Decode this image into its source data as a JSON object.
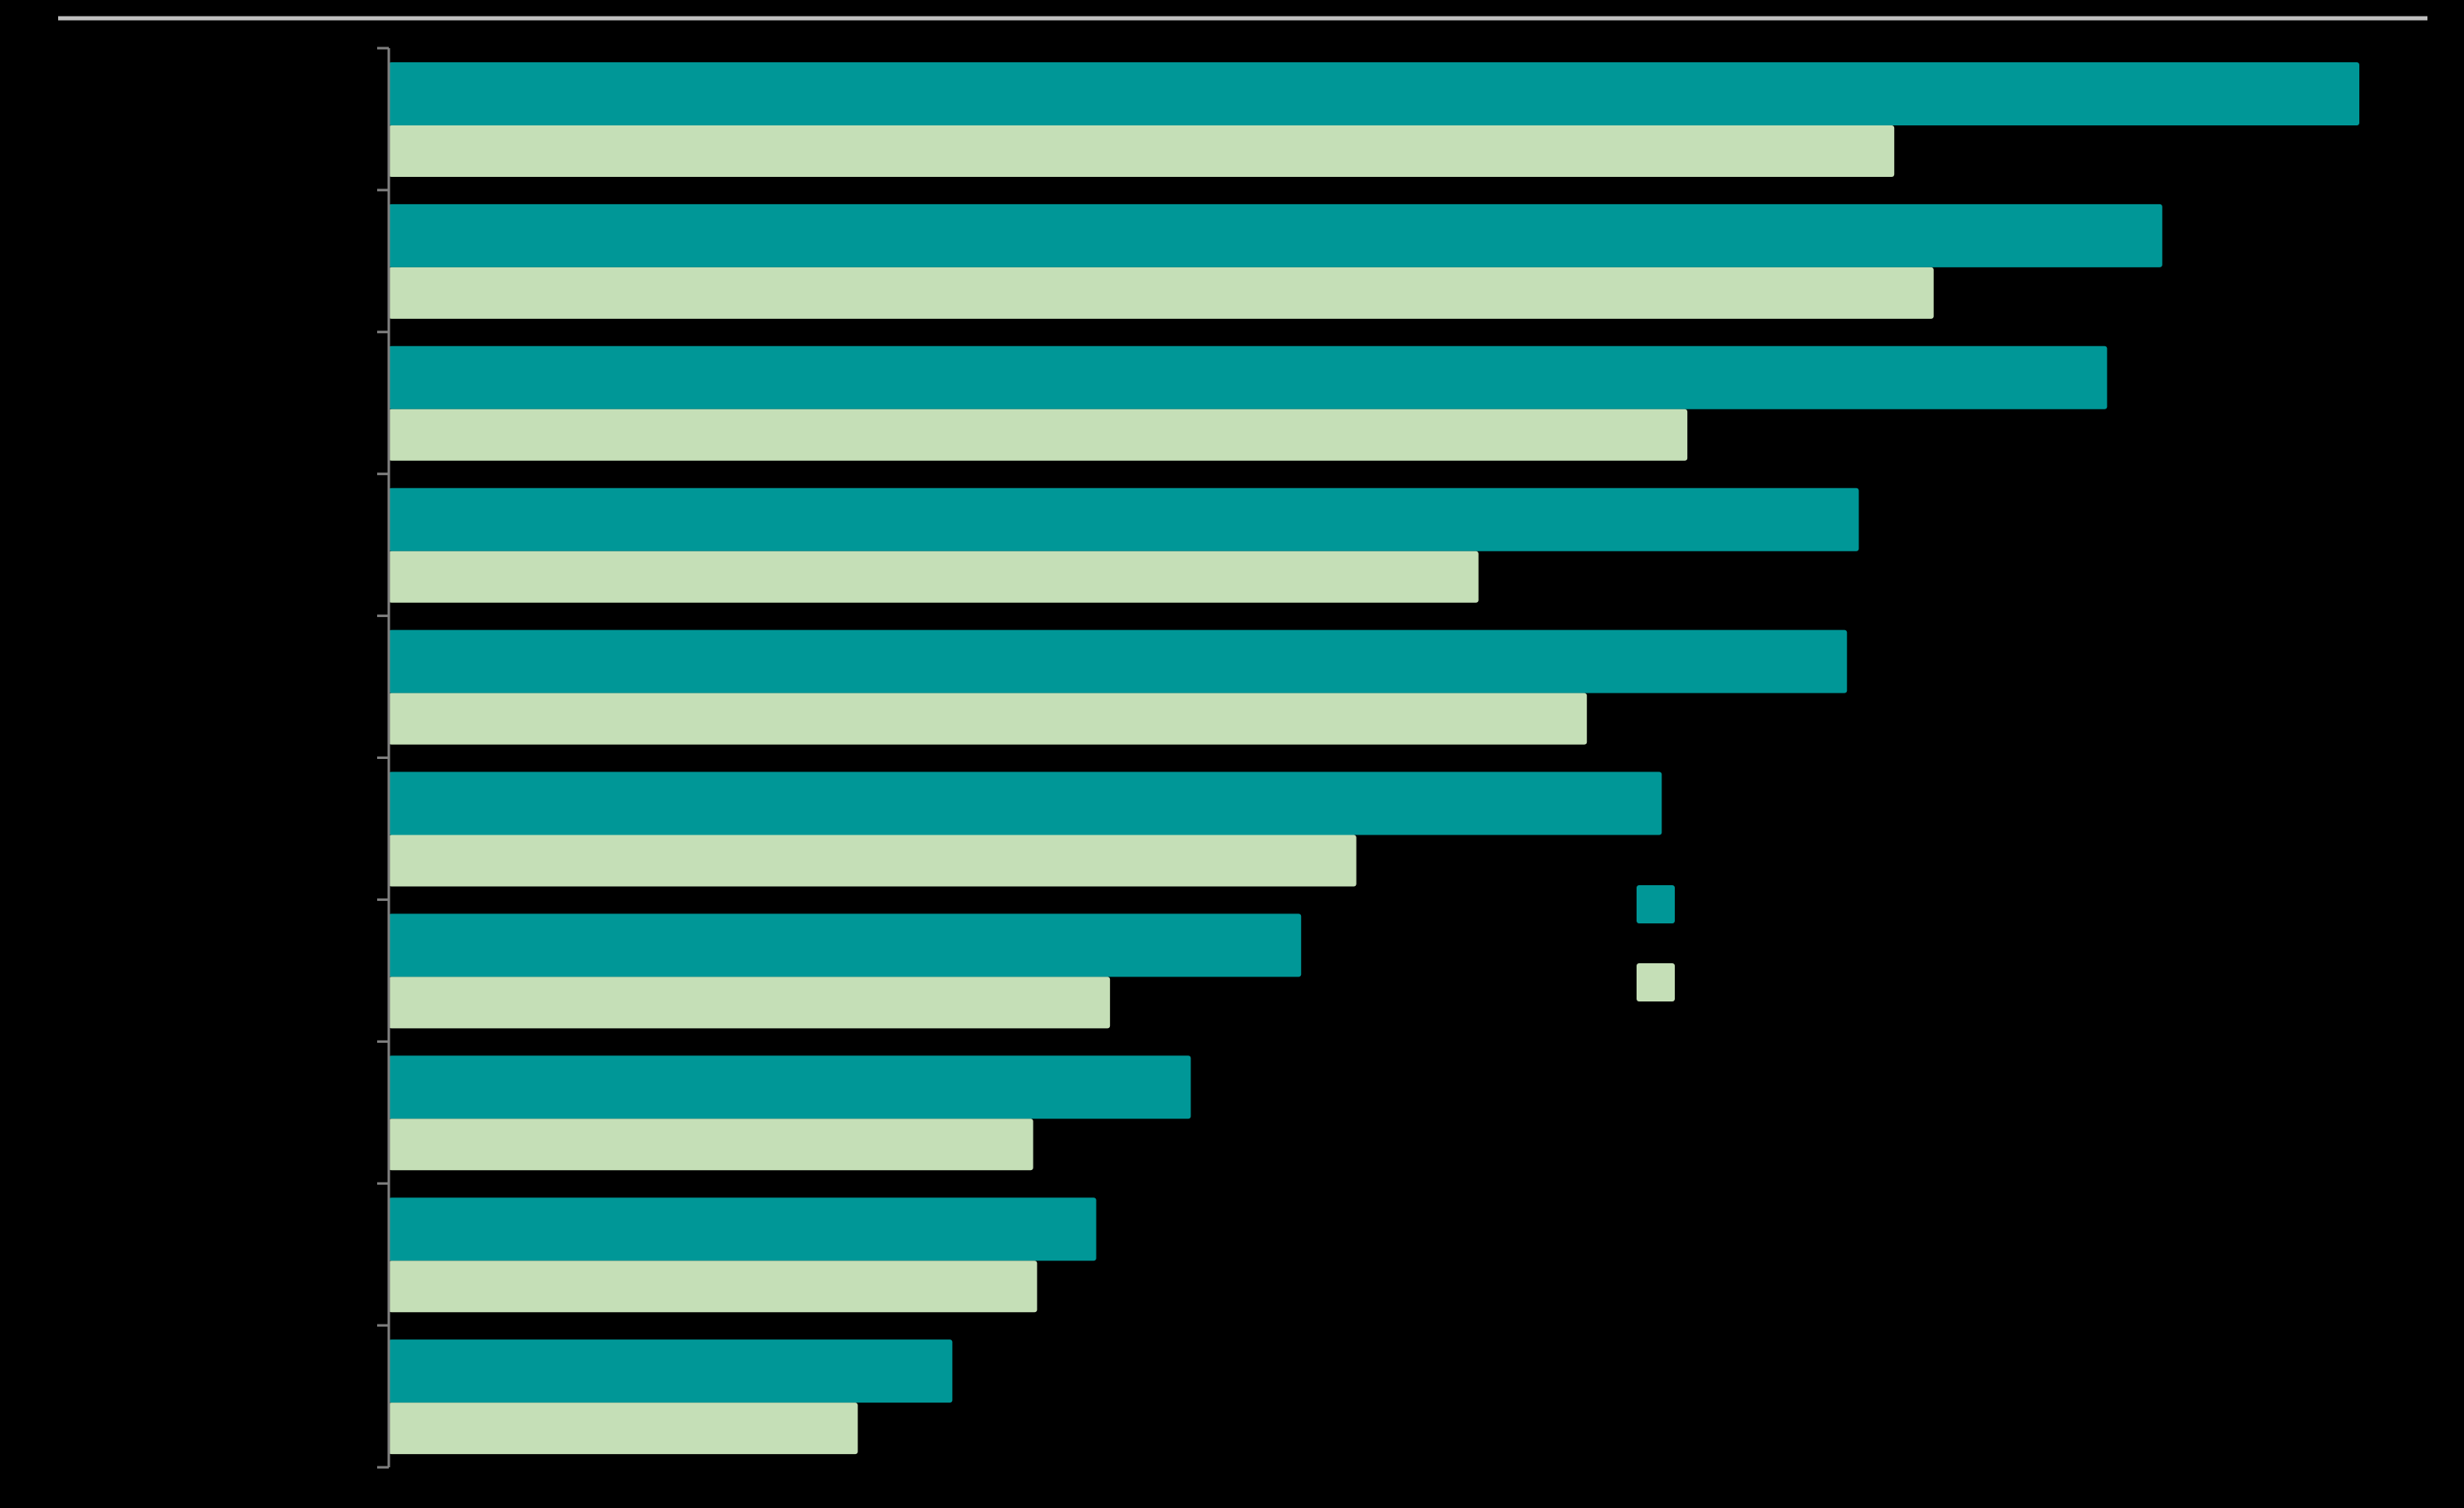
{
  "chart_data": {
    "type": "bar",
    "orientation": "horizontal",
    "title": "",
    "xlabel": "",
    "ylabel": "",
    "categories": [
      "",
      "",
      "",
      "",
      "",
      "",
      "",
      "",
      "",
      ""
    ],
    "series": [
      {
        "color": "#009797",
        "values": [
          100,
          90,
          87.2,
          74.6,
          74,
          64.6,
          46.3,
          40.7,
          35.9,
          28.6
        ]
      },
      {
        "color": "#c5dfb7",
        "values": [
          76.4,
          78.4,
          65.9,
          55.3,
          60.8,
          49.1,
          36.6,
          32.7,
          32.9,
          23.8
        ]
      }
    ],
    "xlim": [
      0,
      100
    ],
    "grid": false,
    "legend": {
      "position": "center-right",
      "entries": [
        "",
        ""
      ]
    },
    "colors": {
      "background": "#000000",
      "top_rule": "#bfbfbf",
      "axis": "#7f7f7f"
    }
  }
}
